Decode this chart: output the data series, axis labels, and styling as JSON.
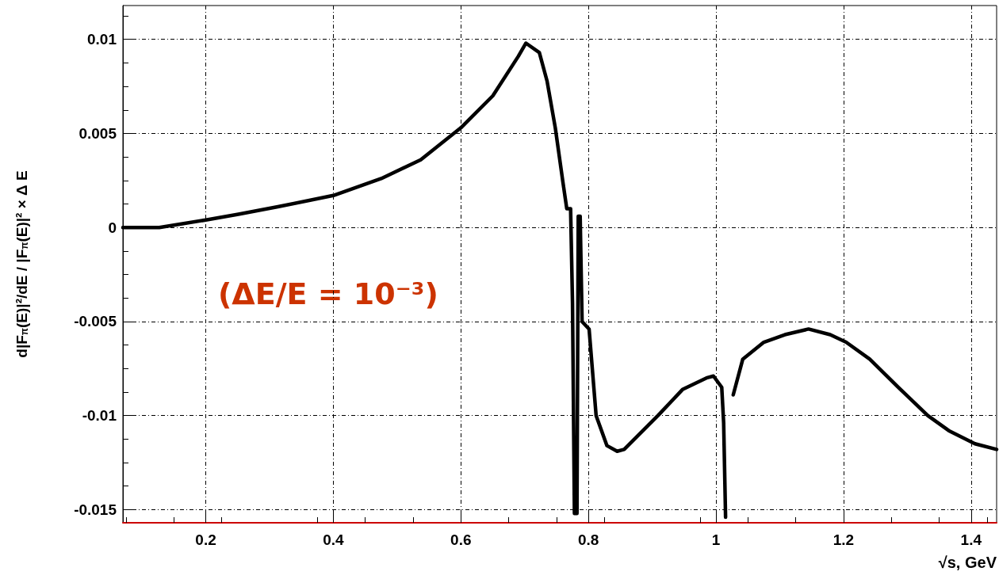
{
  "chart_data": {
    "type": "line",
    "xlabel": "√s, GeV",
    "ylabel": "d|F$_{π}$(E)|²/dE / |F$_{π}$(E)|² × Δ E",
    "annotations": [
      "(ΔE/E = 10⁻³)"
    ],
    "xlim": [
      0.07,
      1.44
    ],
    "xticks": [
      0.2,
      0.4,
      0.6,
      0.8,
      1,
      1.2,
      1.4
    ],
    "ylim": [
      -0.0157,
      0.0118
    ],
    "yticks": [
      -0.015,
      -0.01,
      -0.005,
      0,
      0.005,
      0.01
    ],
    "grid": true,
    "marker": "none",
    "line_style": "solid",
    "series": [
      {
        "color": "#000000",
        "x": [
          0.07,
          0.127,
          0.2,
          0.251,
          0.313,
          0.4,
          0.475,
          0.537,
          0.6,
          0.65,
          0.69,
          0.702,
          0.723,
          0.735,
          0.748,
          0.76,
          0.766,
          0.772,
          0.775,
          0.778,
          0.782,
          0.784,
          0.787,
          0.79,
          0.801,
          0.812,
          0.829,
          0.845,
          0.856,
          0.909,
          0.948,
          0.985,
          0.996,
          1.009,
          1.012,
          1.015,
          1.02,
          1.024,
          1.027,
          1.042,
          1.075,
          1.108,
          1.145,
          1.179,
          1.204,
          1.241,
          1.286,
          1.332,
          1.365,
          1.406,
          1.44
        ],
        "values": [
          0,
          0,
          0.0004,
          0.0007,
          0.0011,
          0.0017,
          0.0026,
          0.0036,
          0.0053,
          0.007,
          0.0091,
          0.0098,
          0.0093,
          0.0078,
          0.0053,
          0.0024,
          0.001,
          0.001,
          -0.004,
          -0.0152,
          -0.0152,
          0.0006,
          0.0006,
          -0.005,
          -0.0054,
          -0.01,
          -0.0116,
          -0.0119,
          -0.0118,
          -0.01,
          -0.0086,
          -0.008,
          -0.0079,
          -0.0085,
          -0.0104,
          -0.0154,
          null,
          null,
          -0.0089,
          -0.007,
          -0.0061,
          -0.0057,
          -0.0054,
          -0.0057,
          -0.0061,
          -0.007,
          -0.0085,
          -0.01,
          -0.0108,
          -0.0115,
          -0.0118
        ]
      }
    ]
  }
}
